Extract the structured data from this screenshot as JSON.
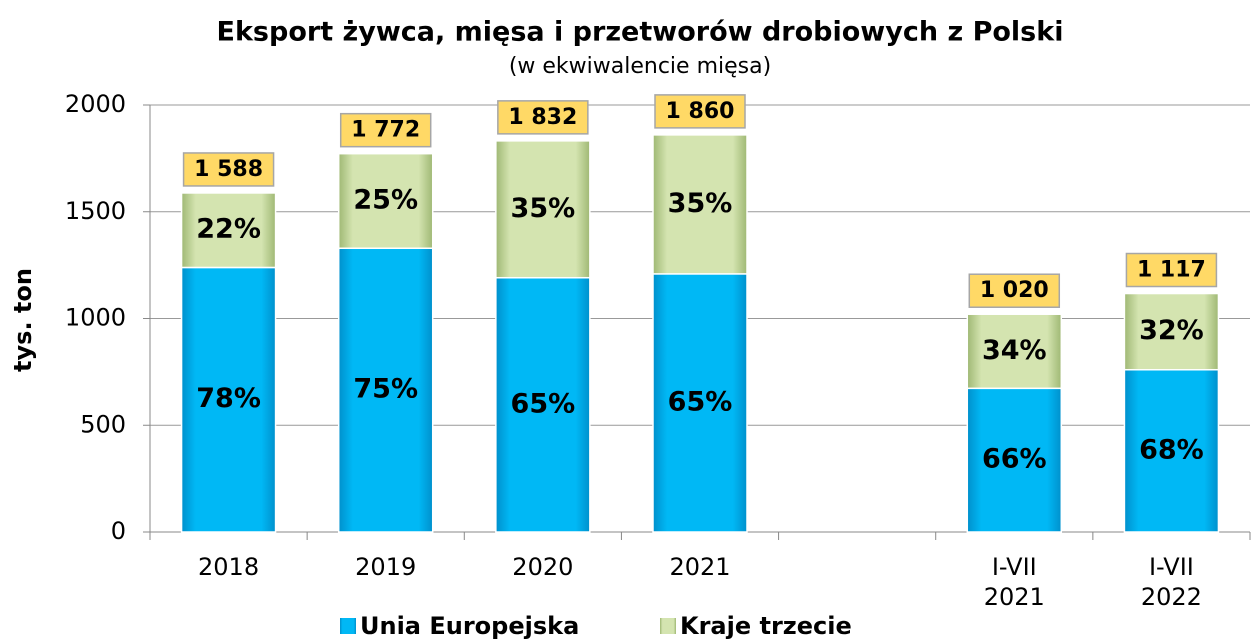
{
  "chart_data": {
    "type": "stacked_bar",
    "title": "Eksport żywca, mięsa i przetworów drobiowych z Polski",
    "subtitle": "(w ekwiwalencie mięsa)",
    "y_label": "tys. ton",
    "categories": [
      "2018",
      "2019",
      "2020",
      "2021",
      null,
      "I-VII 2021",
      "I-VII 2022"
    ],
    "series": [
      {
        "name": "Unia Europejska",
        "color": "#00b0f0",
        "values": [
          1239,
          1329,
          1191,
          1209,
          null,
          673,
          760
        ],
        "shares": [
          78,
          75,
          65,
          65,
          null,
          66,
          68
        ],
        "share_labels": [
          "78%",
          "75%",
          "65%",
          "65%",
          null,
          "66%",
          "68%"
        ]
      },
      {
        "name": "Kraje trzecie",
        "color": "#c4d79b",
        "values": [
          349,
          443,
          641,
          651,
          null,
          347,
          357
        ],
        "shares": [
          22,
          25,
          35,
          35,
          null,
          34,
          32
        ],
        "share_labels": [
          "22%",
          "25%",
          "35%",
          "35%",
          null,
          "34%",
          "32%"
        ]
      }
    ],
    "totals": [
      1588,
      1772,
      1832,
      1860,
      null,
      1020,
      1117
    ],
    "total_labels": [
      "1 588",
      "1 772",
      "1 832",
      "1 860",
      null,
      "1 020",
      "1 117"
    ],
    "ylim": [
      0,
      2000
    ],
    "yticks": [
      0,
      500,
      1000,
      1500,
      2000
    ],
    "grid": true,
    "legend": "bottom"
  }
}
